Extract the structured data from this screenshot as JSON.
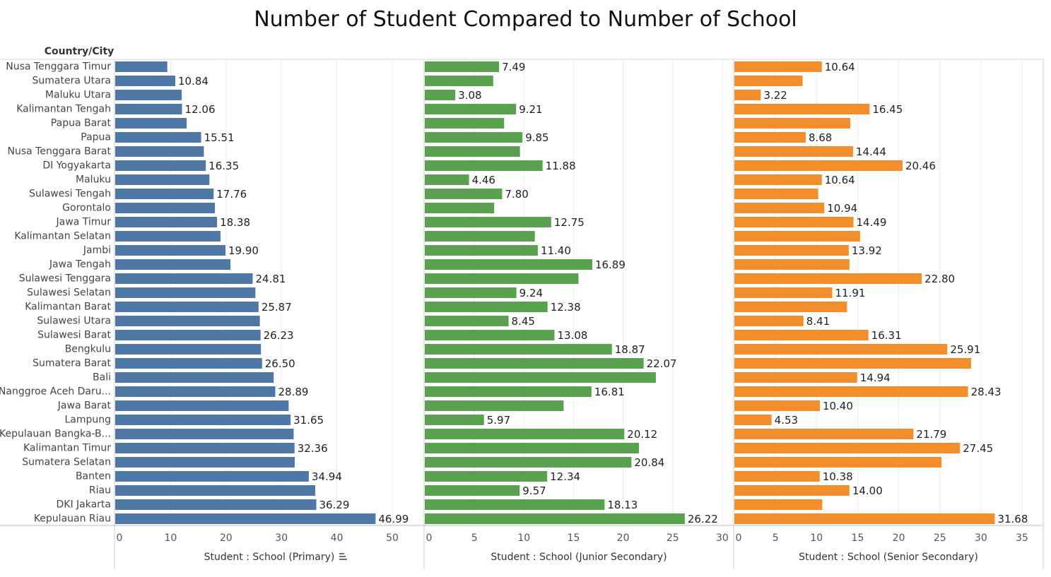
{
  "title": "Number of Student Compared to  Number of School",
  "row_header": "Country/City",
  "sort_icon": "sort-descending-icon",
  "chart_data": {
    "type": "bar",
    "orientation": "horizontal",
    "categories": [
      "Nusa Tenggara Timur",
      "Sumatera Utara",
      "Maluku Utara",
      "Kalimantan Tengah",
      "Papua Barat",
      "Papua",
      "Nusa Tenggara Barat",
      "DI Yogyakarta",
      "Maluku",
      "Sulawesi Tengah",
      "Gorontalo",
      "Jawa Timur",
      "Kalimantan Selatan",
      "Jambi",
      "Jawa Tengah",
      "Sulawesi Tenggara",
      "Sulawesi Selatan",
      "Kalimantan Barat",
      "Sulawesi Utara",
      "Sulawesi Barat",
      "Bengkulu",
      "Sumatera Barat",
      "Bali",
      "Nanggroe Aceh Daru...",
      "Jawa Barat",
      "Lampung",
      "Kepulauan Bangka-B...",
      "Kalimantan Timur",
      "Sumatera Selatan",
      "Banten",
      "Riau",
      "DKI Jakarta",
      "Kepulauan Riau"
    ],
    "grid": true,
    "panels": [
      {
        "name": "Student : School (Primary)",
        "color": "#4e79a7",
        "xlim": [
          0,
          55
        ],
        "ticks": [
          0,
          10,
          20,
          30,
          40,
          50
        ],
        "values": [
          9.4,
          10.84,
          12.0,
          12.06,
          12.9,
          15.51,
          16.0,
          16.35,
          17.0,
          17.76,
          18.0,
          18.38,
          19.0,
          19.9,
          20.8,
          24.81,
          25.3,
          25.87,
          26.1,
          26.23,
          26.3,
          26.5,
          28.6,
          28.89,
          31.3,
          31.65,
          32.2,
          32.36,
          32.4,
          34.94,
          36.1,
          36.29,
          46.99
        ],
        "labels": [
          "",
          "10.84",
          "",
          "12.06",
          "",
          "15.51",
          "",
          "16.35",
          "",
          "17.76",
          "",
          "18.38",
          "",
          "19.90",
          "",
          "24.81",
          "",
          "25.87",
          "",
          "26.23",
          "",
          "26.50",
          "",
          "28.89",
          "",
          "31.65",
          "",
          "32.36",
          "",
          "34.94",
          "",
          "36.29",
          "46.99"
        ]
      },
      {
        "name": "Student : School (Junior Secondary)",
        "color": "#59a14f",
        "xlim": [
          0,
          30
        ],
        "ticks": [
          0,
          5,
          10,
          15,
          20,
          25,
          30
        ],
        "values": [
          7.49,
          6.9,
          3.08,
          9.21,
          8.0,
          9.85,
          9.6,
          11.88,
          4.46,
          7.8,
          7.0,
          12.75,
          11.1,
          11.4,
          16.89,
          15.5,
          9.24,
          12.38,
          8.45,
          13.08,
          18.87,
          22.07,
          23.3,
          16.81,
          14.0,
          5.97,
          20.12,
          21.6,
          20.84,
          12.34,
          9.57,
          18.13,
          26.22
        ],
        "labels": [
          "7.49",
          "",
          "3.08",
          "9.21",
          "",
          "9.85",
          "",
          "11.88",
          "4.46",
          "7.80",
          "",
          "12.75",
          "",
          "11.40",
          "16.89",
          "",
          "9.24",
          "12.38",
          "8.45",
          "13.08",
          "18.87",
          "22.07",
          "",
          "16.81",
          "",
          "5.97",
          "20.12",
          "",
          "20.84",
          "12.34",
          "9.57",
          "18.13",
          "26.22"
        ]
      },
      {
        "name": "Student : School (Senior Secondary)",
        "color": "#f28e2b",
        "xlim": [
          0,
          37
        ],
        "ticks": [
          0,
          5,
          10,
          15,
          20,
          25,
          30,
          35
        ],
        "values": [
          10.64,
          8.3,
          3.22,
          16.45,
          14.1,
          8.68,
          14.44,
          20.46,
          10.64,
          10.2,
          10.94,
          14.49,
          15.3,
          13.92,
          14.0,
          22.8,
          11.91,
          13.7,
          8.41,
          16.31,
          25.91,
          28.8,
          14.94,
          28.43,
          10.4,
          4.53,
          21.79,
          27.45,
          25.2,
          10.38,
          14.0,
          10.7,
          31.68
        ],
        "labels": [
          "10.64",
          "",
          "3.22",
          "16.45",
          "",
          "8.68",
          "14.44",
          "20.46",
          "10.64",
          "",
          "10.94",
          "14.49",
          "",
          "13.92",
          "",
          "22.80",
          "11.91",
          "",
          "8.41",
          "16.31",
          "25.91",
          "",
          "14.94",
          "28.43",
          "10.40",
          "4.53",
          "21.79",
          "27.45",
          "",
          "10.38",
          "14.00",
          "",
          "31.68"
        ]
      }
    ]
  }
}
